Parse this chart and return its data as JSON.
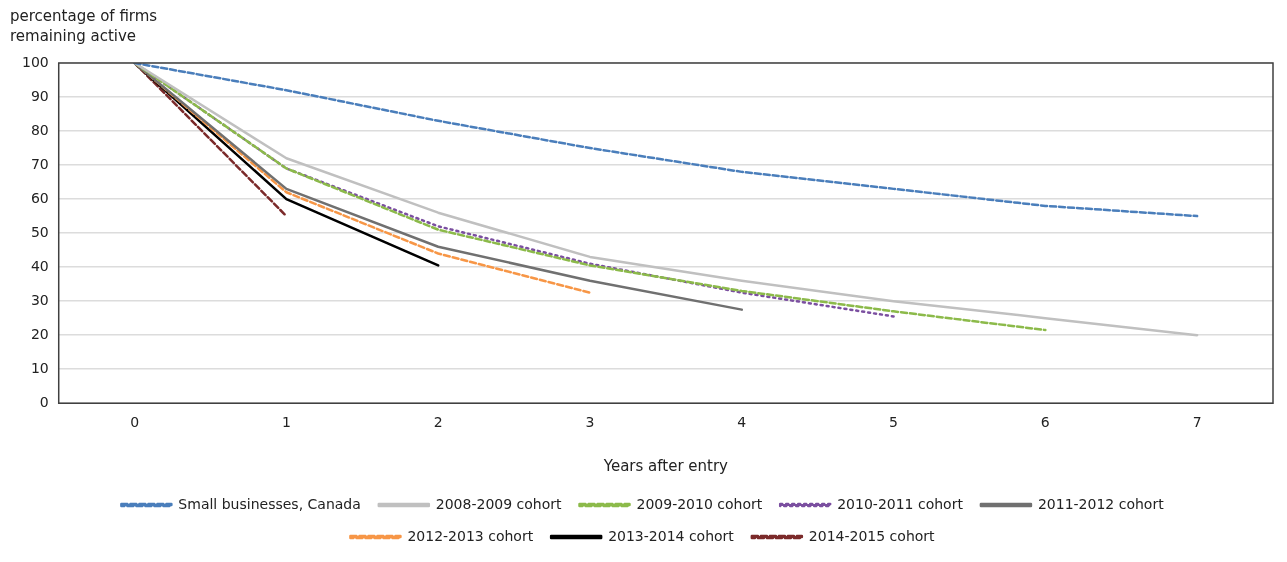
{
  "chart_data": {
    "type": "line",
    "ylabel": "percentage of firms remaining active",
    "xlabel": "Years after entry",
    "categories": [
      "0",
      "1",
      "2",
      "3",
      "4",
      "5",
      "6",
      "7"
    ],
    "ylim": [
      0,
      100
    ],
    "yticks": [
      0,
      10,
      20,
      30,
      40,
      50,
      60,
      70,
      80,
      90,
      100
    ],
    "grid": "y",
    "legend": "bottom",
    "marker": "none",
    "series": [
      {
        "name": "Small businesses, Canada",
        "color": "#4a7ebb",
        "line_style": "dashed",
        "values": [
          100,
          92,
          83,
          75,
          68,
          63,
          58,
          55
        ]
      },
      {
        "name": "2008-2009 cohort",
        "color": "#c0c0c0",
        "line_style": "solid",
        "values": [
          100,
          72,
          56,
          43,
          36,
          30,
          25,
          20
        ]
      },
      {
        "name": "2009-2010 cohort",
        "color": "#8cba4a",
        "line_style": "dashed",
        "values": [
          100,
          69,
          51,
          40.5,
          33,
          27,
          21.5,
          null
        ]
      },
      {
        "name": "2010-2011 cohort",
        "color": "#7b4fa0",
        "line_style": "dotted",
        "values": [
          100,
          69,
          52,
          41,
          32.5,
          25.5,
          null,
          null
        ]
      },
      {
        "name": "2011-2012 cohort",
        "color": "#707070",
        "line_style": "solid",
        "values": [
          100,
          63,
          46,
          36,
          27.5,
          null,
          null,
          null
        ]
      },
      {
        "name": "2012-2013 cohort",
        "color": "#f79646",
        "line_style": "dashed",
        "values": [
          100,
          62,
          44,
          32.5,
          null,
          null,
          null,
          null
        ]
      },
      {
        "name": "2013-2014 cohort",
        "color": "#000000",
        "line_style": "solid",
        "values": [
          100,
          60,
          40.5,
          null,
          null,
          null,
          null,
          null
        ]
      },
      {
        "name": "2014-2015 cohort",
        "color": "#7b2a2a",
        "line_style": "dashed",
        "values": [
          100,
          55,
          null,
          null,
          null,
          null,
          null,
          null
        ]
      }
    ]
  }
}
